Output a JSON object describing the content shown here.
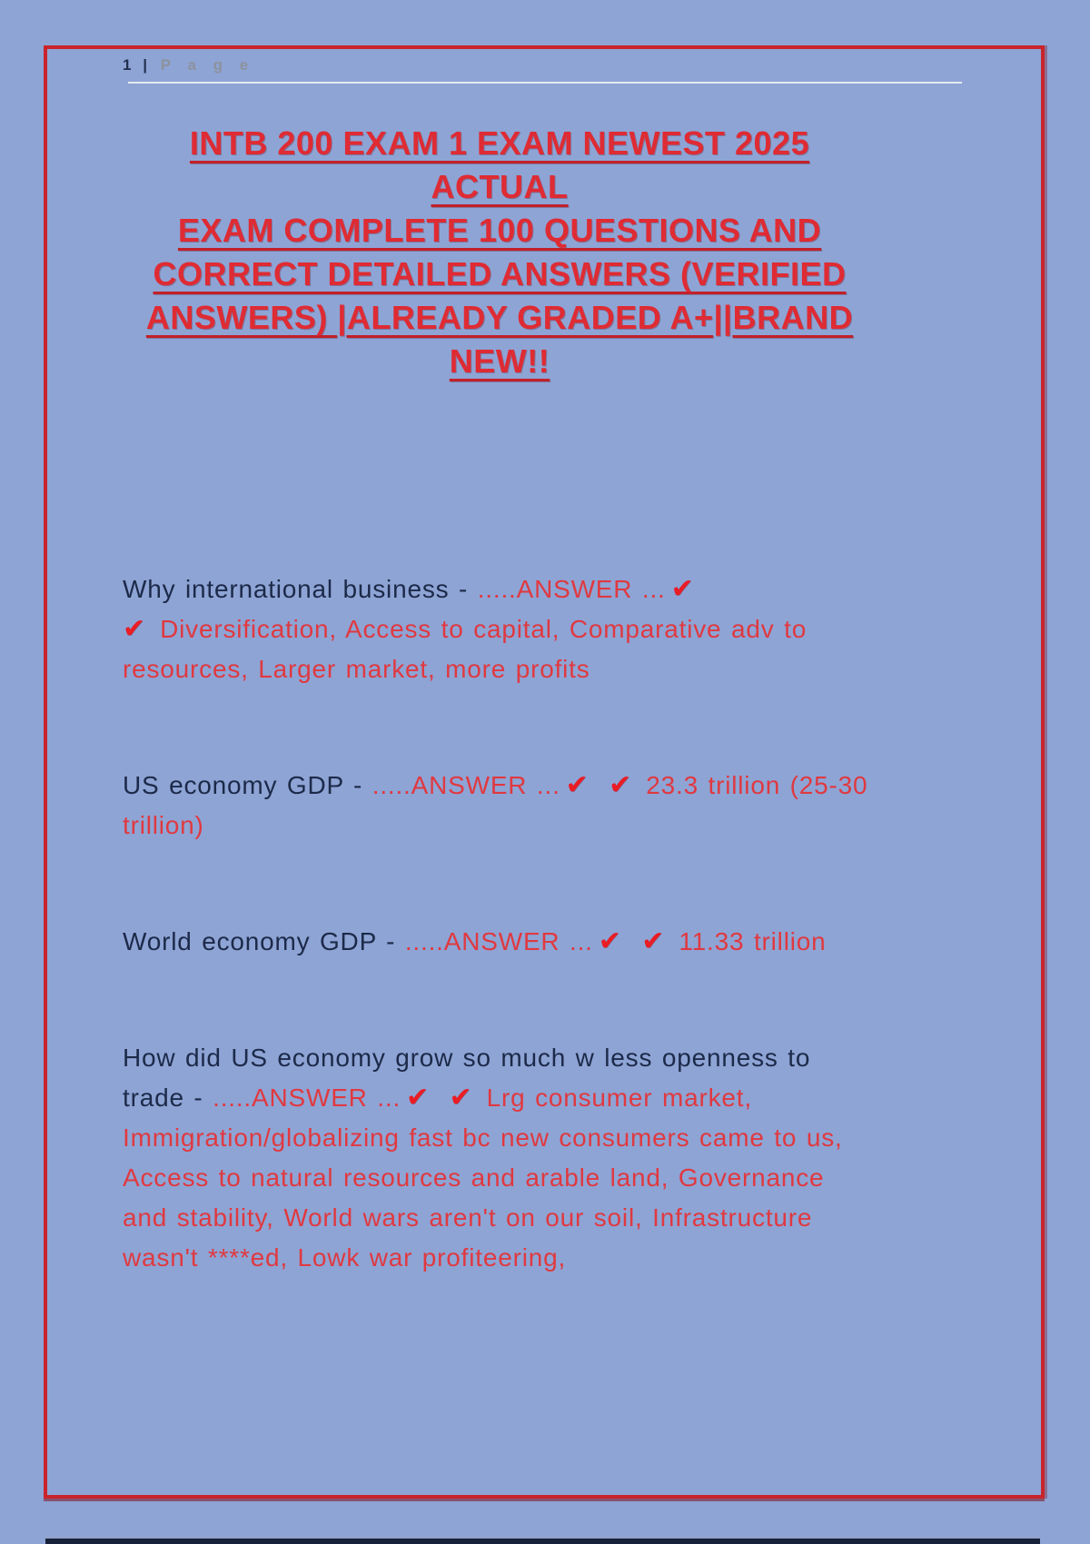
{
  "header": {
    "page_number": "1",
    "separator": "|",
    "label": "P a g e"
  },
  "title_lines": [
    "INTB 200 EXAM 1 EXAM NEWEST 2025 ACTUAL",
    "EXAM COMPLETE 100 QUESTIONS AND",
    "CORRECT DETAILED ANSWERS (VERIFIED",
    "ANSWERS) |ALREADY GRADED A+||BRAND",
    "NEW!!"
  ],
  "answer_marker": ".....ANSWER ...",
  "checkmarks": "✔ ✔",
  "qa_items": [
    {
      "question": "Why international business - ",
      "answer": "Diversification, Access to capital, Comparative adv to resources, Larger market, more profits"
    },
    {
      "question": "US economy GDP - ",
      "answer": "23.3 trillion (25-30 trillion)"
    },
    {
      "question": "World economy GDP - ",
      "answer": "11.33 trillion"
    },
    {
      "question": "How did US economy grow so much w less openness to trade - ",
      "answer": "Lrg consumer market, Immigration/globalizing fast bc new consumers came to us, Access to natural resources and arable land, Governance and stability, World wars aren't on our soil, Infrastructure wasn't ****ed, Lowk war profiteering,"
    }
  ],
  "colors": {
    "background": "#8EA4D5",
    "border_red": "#C9242C",
    "title_red": "#DF2B33",
    "question_navy": "#1C2A49",
    "answer_red": "#E03940",
    "checkmark_red": "#EA1C24",
    "page_label_gray": "#8C929E",
    "bottom_bar_navy": "#17213C"
  }
}
